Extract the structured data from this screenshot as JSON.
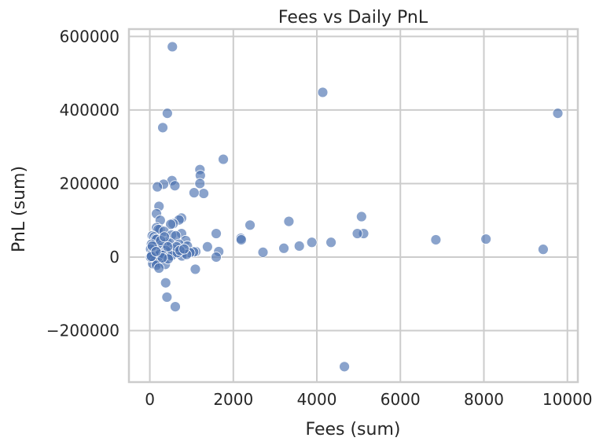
{
  "chart_data": {
    "type": "scatter",
    "title": "Fees vs Daily PnL",
    "xlabel": "Fees (sum)",
    "ylabel": "PnL (sum)",
    "xlim": [
      -500,
      10250
    ],
    "ylim": [
      -340000,
      620000
    ],
    "x_ticks": [
      0,
      2000,
      4000,
      6000,
      8000,
      10000
    ],
    "x_tick_labels": [
      "0",
      "2000",
      "4000",
      "6000",
      "8000",
      "10000"
    ],
    "y_ticks": [
      -200000,
      0,
      200000,
      400000,
      600000
    ],
    "y_tick_labels": [
      "−200000",
      "0",
      "200000",
      "400000",
      "600000"
    ],
    "grid": true,
    "marker_color": "#4c72b0",
    "series": [
      {
        "points": [
          [
            540,
            572000
          ],
          [
            4140,
            448000
          ],
          [
            9770,
            391000
          ],
          [
            420,
            391000
          ],
          [
            310,
            352000
          ],
          [
            1760,
            266000
          ],
          [
            1200,
            238000
          ],
          [
            1210,
            222000
          ],
          [
            530,
            208000
          ],
          [
            330,
            198000
          ],
          [
            1200,
            200000
          ],
          [
            600,
            194000
          ],
          [
            180,
            191000
          ],
          [
            1290,
            173000
          ],
          [
            1060,
            175000
          ],
          [
            220,
            138000
          ],
          [
            160,
            118000
          ],
          [
            5070,
            110000
          ],
          [
            760,
            106000
          ],
          [
            700,
            101000
          ],
          [
            250,
            100000
          ],
          [
            3330,
            97000
          ],
          [
            560,
            91000
          ],
          [
            500,
            89000
          ],
          [
            2400,
            87000
          ],
          [
            160,
            80000
          ],
          [
            240,
            75000
          ],
          [
            200,
            75000
          ],
          [
            340,
            70000
          ],
          [
            60,
            58000
          ],
          [
            5120,
            64000
          ],
          [
            4970,
            64000
          ],
          [
            1590,
            64000
          ],
          [
            760,
            64000
          ],
          [
            520,
            60000
          ],
          [
            620,
            58000
          ],
          [
            100,
            55000
          ],
          [
            2180,
            51000
          ],
          [
            6850,
            47000
          ],
          [
            8050,
            49000
          ],
          [
            2190,
            47000
          ],
          [
            140,
            50000
          ],
          [
            160,
            48000
          ],
          [
            860,
            45000
          ],
          [
            3880,
            40000
          ],
          [
            4340,
            40000
          ],
          [
            410,
            40000
          ],
          [
            480,
            38000
          ],
          [
            700,
            35000
          ],
          [
            40,
            35000
          ],
          [
            280,
            32000
          ],
          [
            3580,
            30000
          ],
          [
            1380,
            28000
          ],
          [
            900,
            30000
          ],
          [
            3210,
            24000
          ],
          [
            9420,
            21000
          ],
          [
            260,
            25000
          ],
          [
            560,
            22000
          ],
          [
            110,
            20000
          ],
          [
            20,
            22000
          ],
          [
            1100,
            15000
          ],
          [
            1050,
            14000
          ],
          [
            960,
            12000
          ],
          [
            780,
            12000
          ],
          [
            1650,
            15000
          ],
          [
            2710,
            13000
          ],
          [
            450,
            14000
          ],
          [
            380,
            18000
          ],
          [
            600,
            10000
          ],
          [
            300,
            10000
          ],
          [
            50,
            8000
          ],
          [
            130,
            5000
          ],
          [
            180,
            3000
          ],
          [
            240,
            8000
          ],
          [
            330,
            5000
          ],
          [
            470,
            2000
          ],
          [
            520,
            4000
          ],
          [
            770,
            3000
          ],
          [
            880,
            7000
          ],
          [
            660,
            12000
          ],
          [
            1590,
            0
          ],
          [
            10,
            0
          ],
          [
            80,
            -5000
          ],
          [
            120,
            -10000
          ],
          [
            210,
            -15000
          ],
          [
            70,
            -18000
          ],
          [
            160,
            -22000
          ],
          [
            370,
            -20000
          ],
          [
            440,
            -5000
          ],
          [
            300,
            -2000
          ],
          [
            220,
            -30000
          ],
          [
            1090,
            -33000
          ],
          [
            380,
            -70000
          ],
          [
            410,
            -109000
          ],
          [
            610,
            -135000
          ],
          [
            4660,
            -298000
          ],
          [
            20,
            0
          ],
          [
            40,
            2000
          ],
          [
            60,
            30000
          ],
          [
            260,
            45000
          ],
          [
            150,
            15000
          ],
          [
            640,
            28000
          ],
          [
            720,
            18000
          ],
          [
            820,
            22000
          ],
          [
            350,
            55000
          ],
          [
            430,
            28000
          ]
        ]
      }
    ]
  }
}
